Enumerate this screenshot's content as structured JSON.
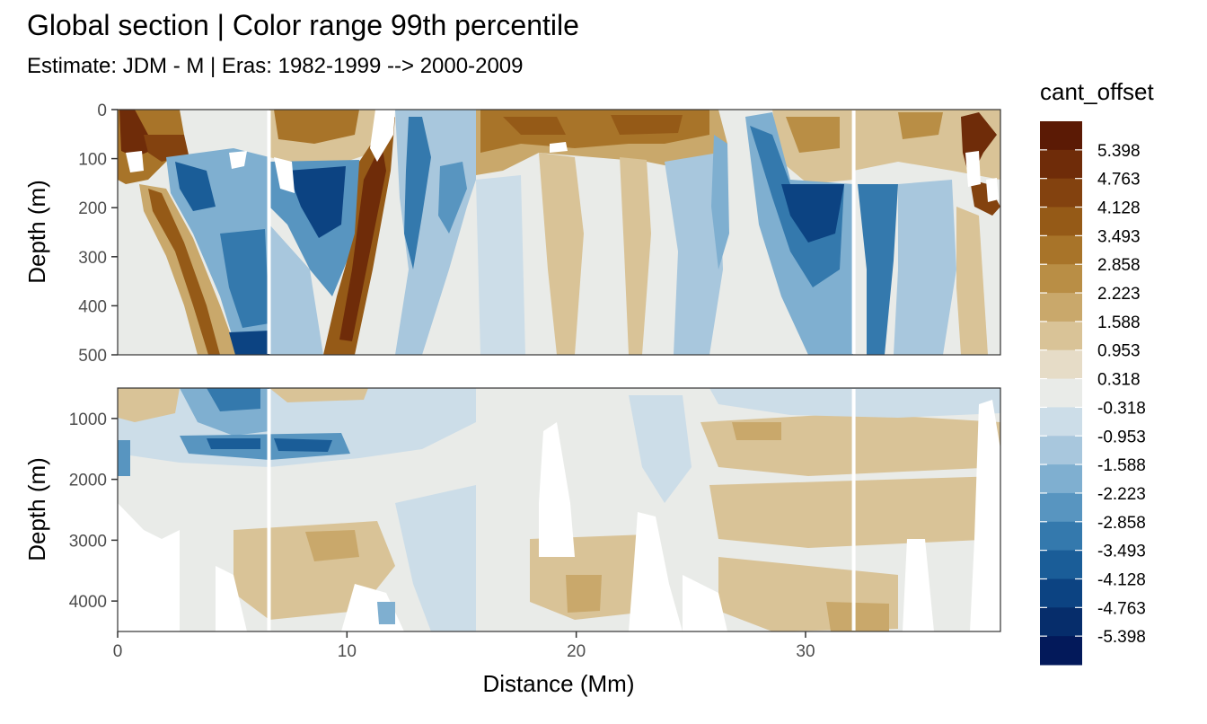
{
  "chart_data": {
    "type": "heatmap",
    "title": "Global section | Color range 99th percentile",
    "subtitle": "Estimate: JDM - M | Eras: 1982-1999 --> 2000-2009",
    "xlabel": "Distance (Mm)",
    "ylabel": "Depth (m)",
    "xlim": [
      0,
      38.5
    ],
    "x_ticks": [
      0,
      10,
      20,
      30
    ],
    "panels": [
      {
        "name": "upper",
        "ylim": [
          0,
          500
        ],
        "y_ticks": [
          0,
          100,
          200,
          300,
          400,
          500
        ]
      },
      {
        "name": "lower",
        "ylim": [
          500,
          4500
        ],
        "y_ticks": [
          1000,
          2000,
          3000,
          4000
        ]
      }
    ],
    "section_breaks_mm": [
      6.6,
      32.1
    ],
    "legend": {
      "title": "cant_offset",
      "position": "right",
      "labels": [
        "5.398",
        "4.763",
        "4.128",
        "3.493",
        "2.858",
        "2.223",
        "1.588",
        "0.953",
        "0.318",
        "-0.318",
        "-0.953",
        "-1.588",
        "-2.223",
        "-2.858",
        "-3.493",
        "-4.128",
        "-4.763",
        "-5.398"
      ],
      "colors": [
        "#5b1a05",
        "#6f2c09",
        "#83420f",
        "#955a17",
        "#a87429",
        "#b98e45",
        "#c9a86b",
        "#d9c397",
        "#e6dcc7",
        "#e9ebe8",
        "#ccdde8",
        "#a8c7dd",
        "#7fafd0",
        "#5895c0",
        "#3479ad",
        "#1a5d98",
        "#0c4382",
        "#062d6b",
        "#03195a"
      ]
    }
  }
}
